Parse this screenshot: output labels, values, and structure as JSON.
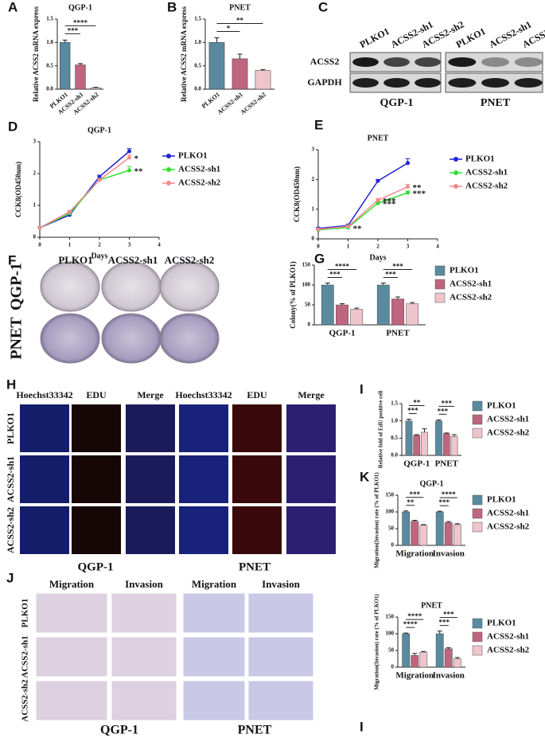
{
  "panel_letters": [
    "A",
    "B",
    "C",
    "D",
    "E",
    "F",
    "G",
    "H",
    "I",
    "K",
    "J",
    "I"
  ],
  "blot": {
    "lanes": [
      "PLKO1",
      "ACSS2-sh1",
      "ACSS2-sh2"
    ],
    "rows": [
      "ACSS2",
      "GAPDH"
    ],
    "groups": [
      "QGP-1",
      "PNET"
    ]
  },
  "colony": {
    "columns": [
      "PLKO1",
      "ACSS2-sh1",
      "ACSS2-sh2"
    ],
    "rows": [
      "QGP-1",
      "PNET"
    ]
  },
  "edu": {
    "columns": [
      "Hoechst33342",
      "EDU",
      "Merge",
      "Hoechst33342",
      "EDU",
      "Merge"
    ],
    "rows": [
      "PLKO1",
      "ACSS2-sh1",
      "ACSS2-sh2"
    ],
    "groups": [
      "QGP-1",
      "PNET"
    ]
  },
  "transwell": {
    "columns": [
      "Migration",
      "Invasion",
      "Migration",
      "Invasion"
    ],
    "rows": [
      "PLKO1",
      "ACSS2-sh1",
      "ACSS2-sh2"
    ],
    "groups": [
      "QGP-1",
      "PNET"
    ]
  },
  "chart_data": [
    {
      "type": "bar",
      "title": "QGP-1",
      "y_label": "Relative ACSS2 mRNA express",
      "categories": [
        "PLKO1",
        "ACSS2-sh1",
        "ACSS2-sh2"
      ],
      "values": [
        1.0,
        0.52,
        0.03
      ],
      "errors": [
        0.05,
        0.03,
        0.01
      ],
      "colors": [
        "#5a8a9f",
        "#c0657f",
        "#eec5cb"
      ],
      "ylim": [
        0,
        1.5
      ],
      "yticks": [
        {
          "value": 0,
          "label": "0.0"
        },
        0.5,
        {
          "value": 1,
          "label": "1.0"
        },
        1.5
      ],
      "annotations": [
        {
          "text": "***",
          "from": 0,
          "to": 1
        },
        {
          "text": "****",
          "from": 0,
          "to": 2
        }
      ]
    },
    {
      "type": "bar",
      "title": "PNET",
      "y_label": "Relative ACSS2 mRNA express",
      "categories": [
        "PLKO1",
        "ACSS2-sh1",
        "ACSS2-sh2"
      ],
      "values": [
        1.0,
        0.65,
        0.4
      ],
      "errors": [
        0.1,
        0.1,
        0.02
      ],
      "colors": [
        "#5a8a9f",
        "#c0657f",
        "#eec5cb"
      ],
      "ylim": [
        0,
        1.5
      ],
      "yticks": [
        {
          "value": 0,
          "label": "0.0"
        },
        0.5,
        {
          "value": 1,
          "label": "1.0"
        },
        1.5
      ],
      "annotations": [
        {
          "text": "*",
          "from": 0,
          "to": 1
        },
        {
          "text": "**",
          "from": 0,
          "to": 2
        }
      ]
    },
    {
      "type": "line",
      "title": "QGP-1",
      "x_label": "Days",
      "y_label": "CCK8(OD450nm)",
      "x": [
        0,
        1,
        2,
        3
      ],
      "xlim": [
        0,
        4
      ],
      "xticks": [
        0,
        1,
        2,
        3,
        4
      ],
      "ylim": [
        0,
        3
      ],
      "yticks": [
        0,
        1,
        2,
        3
      ],
      "series": [
        {
          "name": "PLKO1",
          "color": "#2323d6",
          "values": [
            0.3,
            0.7,
            1.9,
            2.7
          ],
          "errors": [
            0.03,
            0.04,
            0.05,
            0.08
          ]
        },
        {
          "name": "ACSS2-sh1",
          "color": "#33dd33",
          "values": [
            0.3,
            0.75,
            1.8,
            2.1
          ],
          "errors": [
            0.03,
            0.04,
            0.05,
            0.12
          ]
        },
        {
          "name": "ACSS2-sh2",
          "color": "#f48a8a",
          "values": [
            0.3,
            0.8,
            1.8,
            2.5
          ],
          "errors": [
            0.03,
            0.04,
            0.05,
            0.08
          ]
        }
      ],
      "annotations": [
        {
          "text": "*",
          "series": 2,
          "index": 3
        },
        {
          "text": "**",
          "series": 1,
          "index": 3
        }
      ]
    },
    {
      "type": "line",
      "title": "PNET",
      "x_label": "Days",
      "y_label": "CCK8(OD450nm)",
      "x": [
        0,
        1,
        2,
        3
      ],
      "xlim": [
        0,
        4
      ],
      "xticks": [
        0,
        1,
        2,
        3,
        4
      ],
      "ylim": [
        0,
        3
      ],
      "yticks": [
        0,
        1,
        2,
        3
      ],
      "series": [
        {
          "name": "PLKO1",
          "color": "#2323d6",
          "values": [
            0.35,
            0.45,
            1.95,
            2.55
          ],
          "errors": [
            0.03,
            0.04,
            0.04,
            0.15
          ]
        },
        {
          "name": "ACSS2-sh1",
          "color": "#33dd33",
          "values": [
            0.3,
            0.38,
            1.2,
            1.55
          ],
          "errors": [
            0.03,
            0.04,
            0.06,
            0.06
          ]
        },
        {
          "name": "ACSS2-sh2",
          "color": "#f48a8a",
          "values": [
            0.32,
            0.42,
            1.3,
            1.75
          ],
          "errors": [
            0.03,
            0.04,
            0.06,
            0.08
          ]
        }
      ],
      "annotations": [
        {
          "text": "**",
          "series": 1,
          "index": 1
        },
        {
          "text": "***",
          "series": 2,
          "index": 2
        },
        {
          "text": "***",
          "series": 1,
          "index": 2
        },
        {
          "text": "**",
          "series": 2,
          "index": 3
        },
        {
          "text": "***",
          "series": 1,
          "index": 3
        }
      ]
    },
    {
      "type": "grouped_bar",
      "y_label": "Colony(% of PLKO1)",
      "categories": [
        "QGP-1",
        "PNET"
      ],
      "series": [
        {
          "name": "PLKO1",
          "color": "#5a8a9f",
          "values": [
            100,
            100
          ],
          "errors": [
            5,
            5
          ]
        },
        {
          "name": "ACSS2-sh1",
          "color": "#c0657f",
          "values": [
            50,
            65
          ],
          "errors": [
            3,
            5
          ]
        },
        {
          "name": "ACSS2-sh2",
          "color": "#eec5cb",
          "values": [
            39,
            53
          ],
          "errors": [
            3,
            3
          ]
        }
      ],
      "ylim": [
        0,
        150
      ],
      "yticks": [
        0,
        50,
        100,
        150
      ],
      "annotations": [
        {
          "text": "***",
          "group": 0,
          "from": 0,
          "to": 1
        },
        {
          "text": "****",
          "group": 0,
          "from": 0,
          "to": 2
        },
        {
          "text": "***",
          "group": 1,
          "from": 0,
          "to": 1
        },
        {
          "text": "***",
          "group": 1,
          "from": 0,
          "to": 2
        }
      ]
    },
    {
      "type": "grouped_bar",
      "y_label": "Relative fold of EdU positive cell",
      "categories": [
        "QGP-1",
        "PNET"
      ],
      "series": [
        {
          "name": "PLKO1",
          "color": "#5a8a9f",
          "values": [
            1.0,
            1.0
          ],
          "errors": [
            0.05,
            0.03
          ]
        },
        {
          "name": "ACSS2-sh1",
          "color": "#c0657f",
          "values": [
            0.58,
            0.63
          ],
          "errors": [
            0.02,
            0.02
          ]
        },
        {
          "name": "ACSS2-sh2",
          "color": "#eec5cb",
          "values": [
            0.67,
            0.55
          ],
          "errors": [
            0.1,
            0.05
          ]
        }
      ],
      "ylim": [
        0,
        1.5
      ],
      "yticks": [
        {
          "value": 0,
          "label": "0.0"
        },
        0.5,
        {
          "value": 1,
          "label": "1.0"
        },
        1.5
      ],
      "annotations": [
        {
          "text": "***",
          "group": 0,
          "from": 0,
          "to": 1
        },
        {
          "text": "**",
          "group": 0,
          "from": 0,
          "to": 2
        },
        {
          "text": "***",
          "group": 1,
          "from": 0,
          "to": 1
        },
        {
          "text": "***",
          "group": 1,
          "from": 0,
          "to": 2
        }
      ]
    },
    {
      "type": "grouped_bar",
      "title": "QGP-1",
      "y_label": "Migration(Invasion) rate (% of PLKO1)",
      "categories": [
        "Migration",
        "Invasion"
      ],
      "series": [
        {
          "name": "PLKO1",
          "color": "#5a8a9f",
          "values": [
            100,
            100
          ],
          "errors": [
            3,
            2
          ]
        },
        {
          "name": "ACSS2-sh1",
          "color": "#c0657f",
          "values": [
            72,
            68
          ],
          "errors": [
            3,
            3
          ]
        },
        {
          "name": "ACSS2-sh2",
          "color": "#eec5cb",
          "values": [
            60,
            62
          ],
          "errors": [
            2,
            3
          ]
        }
      ],
      "ylim": [
        0,
        150
      ],
      "yticks": [
        0,
        50,
        100,
        150
      ],
      "annotations": [
        {
          "text": "**",
          "group": 0,
          "from": 0,
          "to": 1
        },
        {
          "text": "***",
          "group": 0,
          "from": 0,
          "to": 2
        },
        {
          "text": "***",
          "group": 1,
          "from": 0,
          "to": 1
        },
        {
          "text": "****",
          "group": 1,
          "from": 0,
          "to": 2
        }
      ]
    },
    {
      "type": "grouped_bar",
      "title": "PNET",
      "y_label": "Migration(Invasion) rate (% of PLKO1)",
      "categories": [
        "Migration",
        "Invasion"
      ],
      "series": [
        {
          "name": "PLKO1",
          "color": "#5a8a9f",
          "values": [
            100,
            100
          ],
          "errors": [
            2,
            8
          ]
        },
        {
          "name": "ACSS2-sh1",
          "color": "#c0657f",
          "values": [
            35,
            55
          ],
          "errors": [
            6,
            3
          ]
        },
        {
          "name": "ACSS2-sh2",
          "color": "#eec5cb",
          "values": [
            45,
            25
          ],
          "errors": [
            2,
            4
          ]
        }
      ],
      "ylim": [
        0,
        150
      ],
      "yticks": [
        0,
        50,
        100,
        150
      ],
      "annotations": [
        {
          "text": "****",
          "group": 0,
          "from": 0,
          "to": 1
        },
        {
          "text": "****",
          "group": 0,
          "from": 0,
          "to": 2
        },
        {
          "text": "***",
          "group": 1,
          "from": 0,
          "to": 1
        },
        {
          "text": "***",
          "group": 1,
          "from": 0,
          "to": 2
        }
      ]
    }
  ]
}
